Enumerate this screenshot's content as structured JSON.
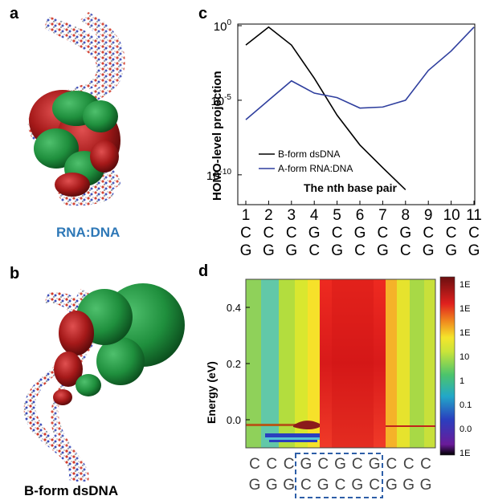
{
  "panels": {
    "a": {
      "letter": "a",
      "caption": "RNA:DNA"
    },
    "b": {
      "letter": "b",
      "caption": "B-form dsDNA"
    },
    "c": {
      "letter": "c"
    },
    "d": {
      "letter": "d"
    }
  },
  "chart_data": [
    {
      "type": "line",
      "panel": "c",
      "title": "",
      "xlabel": "The nth base pair",
      "ylabel": "HOMO-level projection",
      "yscale": "log",
      "ylim": [
        1e-12,
        1
      ],
      "xlim": [
        1,
        11
      ],
      "ytick_labels": [
        {
          "value": 1,
          "base": "10",
          "exp": "0"
        },
        {
          "value": 1e-05,
          "base": "10",
          "exp": "-5"
        },
        {
          "value": 1e-10,
          "base": "10",
          "exp": "-10"
        }
      ],
      "x": [
        1,
        2,
        3,
        4,
        5,
        6,
        7,
        8,
        9,
        10,
        11
      ],
      "x_tick_labels": [
        "1",
        "2",
        "3",
        "4",
        "5",
        "6",
        "7",
        "8",
        "9",
        "10",
        "11"
      ],
      "base_pairs_top": [
        "C",
        "C",
        "C",
        "G",
        "C",
        "G",
        "C",
        "G",
        "C",
        "C",
        "C"
      ],
      "base_pairs_bottom": [
        "G",
        "G",
        "G",
        "C",
        "G",
        "C",
        "G",
        "C",
        "G",
        "G",
        "G"
      ],
      "series": [
        {
          "name": "B-form dsDNA",
          "color": "#000000",
          "x": [
            1,
            2,
            3,
            4,
            5,
            6,
            7,
            8
          ],
          "values": [
            0.05,
            0.8,
            0.05,
            0.0003,
            1e-06,
            1e-08,
            3e-10,
            1e-11
          ]
        },
        {
          "name": "A-form RNA:DNA",
          "color": "#2f3f9e",
          "x": [
            1,
            2,
            3,
            4,
            5,
            6,
            7,
            8,
            9,
            10,
            11
          ],
          "values": [
            5e-07,
            1e-05,
            0.0002,
            3e-05,
            1.5e-05,
            3e-06,
            3.5e-06,
            1e-05,
            0.001,
            0.02,
            0.8
          ]
        }
      ],
      "legend_position": "bottom-left"
    },
    {
      "type": "heatmap",
      "panel": "d",
      "ylabel": "Energy (eV)",
      "ylim": [
        -0.1,
        0.5
      ],
      "ytick_labels": [
        "0.4",
        "0.2",
        "0.0"
      ],
      "ytick_values": [
        0.4,
        0.2,
        0.0
      ],
      "colorbar_labels": [
        "1E",
        "1E",
        "1E",
        "10",
        "1",
        "0.1",
        "0.0",
        "1E"
      ],
      "base_pairs_top": [
        "C",
        "C",
        "C",
        "G",
        "C",
        "G",
        "C",
        "G",
        "C",
        "C",
        "C"
      ],
      "base_pairs_bottom": [
        "G",
        "G",
        "G",
        "C",
        "G",
        "C",
        "G",
        "C",
        "G",
        "G",
        "G"
      ],
      "highlighted_pairs": [
        4,
        8
      ],
      "dashed_box_color": "#2e5fa8"
    }
  ]
}
